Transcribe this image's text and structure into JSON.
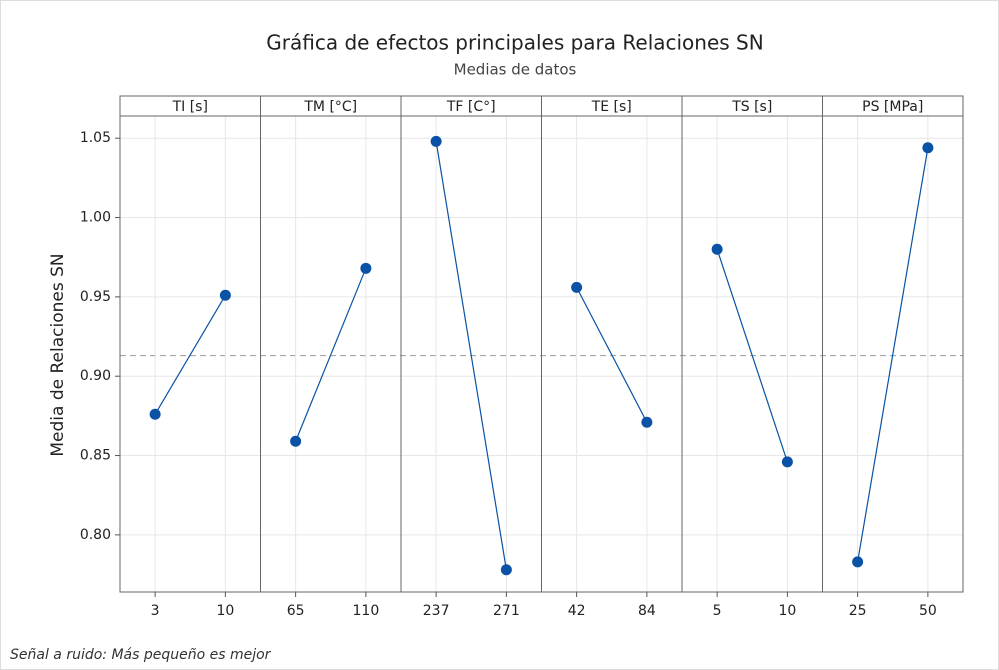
{
  "chart_data": {
    "type": "line",
    "title": "Gráfica de efectos principales para Relaciones SN",
    "subtitle": "Medias de datos",
    "y_label": "Media de Relaciones SN",
    "footnote": "Señal a ruido: Más pequeño es mejor",
    "color": "#0a52a5",
    "grid": true,
    "ylim": [
      0.764,
      1.064
    ],
    "yticks": [
      {
        "value": 0.8,
        "label": "0.80"
      },
      {
        "value": 0.85,
        "label": "0.85"
      },
      {
        "value": 0.9,
        "label": "0.90"
      },
      {
        "value": 0.95,
        "label": "0.95"
      },
      {
        "value": 1.0,
        "label": "1.00"
      },
      {
        "value": 1.05,
        "label": "1.05"
      }
    ],
    "reference_line": 0.913,
    "panels": [
      {
        "name": "TI [s]",
        "categories": [
          "3",
          "10"
        ],
        "values": [
          0.876,
          0.951
        ]
      },
      {
        "name": "TM [°C]",
        "categories": [
          "65",
          "110"
        ],
        "values": [
          0.859,
          0.968
        ]
      },
      {
        "name": "TF [C°]",
        "categories": [
          "237",
          "271"
        ],
        "values": [
          1.048,
          0.778
        ]
      },
      {
        "name": "TE [s]",
        "categories": [
          "42",
          "84"
        ],
        "values": [
          0.956,
          0.871
        ]
      },
      {
        "name": "TS [s]",
        "categories": [
          "5",
          "10"
        ],
        "values": [
          0.98,
          0.846
        ]
      },
      {
        "name": "PS [MPa]",
        "categories": [
          "25",
          "50"
        ],
        "values": [
          0.783,
          1.044
        ]
      }
    ]
  }
}
